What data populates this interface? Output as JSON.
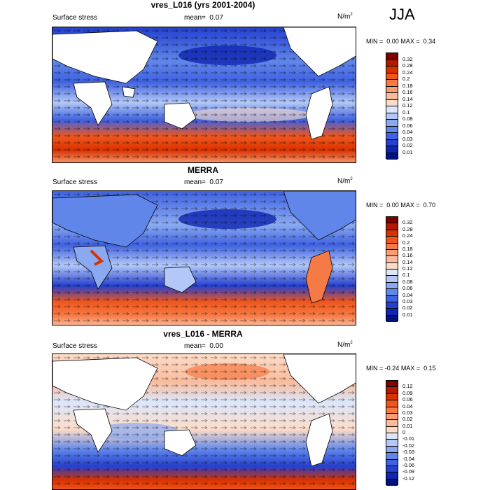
{
  "season": "JJA",
  "panels": [
    {
      "title": "vres_L016 (yrs 2001-2004)",
      "left_label": "Surface stress",
      "mean_label": "mean=",
      "mean_value": "0.07",
      "unit_main": "N/m",
      "unit_sup": "2",
      "min_label": "MIN =",
      "min_value": "0.00",
      "max_label": "MAX =",
      "max_value": "0.34",
      "colorbar": {
        "labels": [
          "0.32",
          "0.28",
          "0.24",
          "0.2",
          "0.18",
          "0.16",
          "0.14",
          "0.12",
          "0.1",
          "0.08",
          "0.06",
          "0.04",
          "0.03",
          "0.02",
          "0.01"
        ],
        "colors": [
          "#7f0000",
          "#b01a00",
          "#d83200",
          "#f0561c",
          "#f57a45",
          "#f89c72",
          "#fabb9c",
          "#fcdcc8",
          "#dbe6fb",
          "#b4c8f7",
          "#8aa9f1",
          "#6086ea",
          "#3f62e0",
          "#2440cf",
          "#0e26b0",
          "#00137f"
        ]
      }
    },
    {
      "title": "MERRA",
      "left_label": "Surface stress",
      "mean_label": "mean=",
      "mean_value": "0.07",
      "unit_main": "N/m",
      "unit_sup": "2",
      "min_label": "MIN =",
      "min_value": "0.00",
      "max_label": "MAX =",
      "max_value": "0.70",
      "colorbar": {
        "labels": [
          "0.32",
          "0.28",
          "0.24",
          "0.2",
          "0.18",
          "0.16",
          "0.14",
          "0.12",
          "0.1",
          "0.08",
          "0.06",
          "0.04",
          "0.03",
          "0.02",
          "0.01"
        ],
        "colors": [
          "#7f0000",
          "#b01a00",
          "#d83200",
          "#f0561c",
          "#f57a45",
          "#f89c72",
          "#fabb9c",
          "#fcdcc8",
          "#dbe6fb",
          "#b4c8f7",
          "#8aa9f1",
          "#6086ea",
          "#3f62e0",
          "#2440cf",
          "#0e26b0",
          "#00137f"
        ]
      }
    },
    {
      "title": "vres_L016 - MERRA",
      "left_label": "Surface stress",
      "mean_label": "mean=",
      "mean_value": "0.00",
      "unit_main": "N/m",
      "unit_sup": "2",
      "min_label": "MIN =",
      "min_value": "-0.24",
      "max_label": "MAX =",
      "max_value": "0.15",
      "colorbar": {
        "labels": [
          "0.12",
          "0.09",
          "0.06",
          "0.04",
          "0.03",
          "0.02",
          "0.01",
          "0",
          "-0.01",
          "-0.02",
          "-0.03",
          "-0.04",
          "-0.06",
          "-0.09",
          "-0.12"
        ],
        "colors": [
          "#7f0000",
          "#b01a00",
          "#d83200",
          "#f0561c",
          "#f57a45",
          "#f89c72",
          "#fabb9c",
          "#fcdcc8",
          "#dbe6fb",
          "#b4c8f7",
          "#8aa9f1",
          "#6086ea",
          "#3f62e0",
          "#2440cf",
          "#0e26b0",
          "#00137f"
        ]
      }
    }
  ],
  "chart_data": [
    {
      "type": "heatmap",
      "title": "vres_L016 (yrs 2001-2004)",
      "subtitle": "Surface stress",
      "units": "N/m2",
      "mean": 0.07,
      "min": 0.0,
      "max": 0.34,
      "levels": [
        0.01,
        0.02,
        0.03,
        0.04,
        0.06,
        0.08,
        0.1,
        0.12,
        0.14,
        0.16,
        0.18,
        0.2,
        0.24,
        0.28,
        0.32
      ],
      "field": "global map of surface wind stress with vectors",
      "grid": false
    },
    {
      "type": "heatmap",
      "title": "MERRA",
      "subtitle": "Surface stress",
      "units": "N/m2",
      "mean": 0.07,
      "min": 0.0,
      "max": 0.7,
      "levels": [
        0.01,
        0.02,
        0.03,
        0.04,
        0.06,
        0.08,
        0.1,
        0.12,
        0.14,
        0.16,
        0.18,
        0.2,
        0.24,
        0.28,
        0.32
      ],
      "field": "global map of surface wind stress with vectors",
      "grid": false
    },
    {
      "type": "heatmap",
      "title": "vres_L016 - MERRA",
      "subtitle": "Surface stress",
      "units": "N/m2",
      "mean": 0.0,
      "min": -0.24,
      "max": 0.15,
      "levels": [
        -0.12,
        -0.09,
        -0.06,
        -0.04,
        -0.03,
        -0.02,
        -0.01,
        0,
        0.01,
        0.02,
        0.03,
        0.04,
        0.06,
        0.09,
        0.12
      ],
      "field": "global map of surface wind stress difference with vectors",
      "grid": false
    }
  ]
}
